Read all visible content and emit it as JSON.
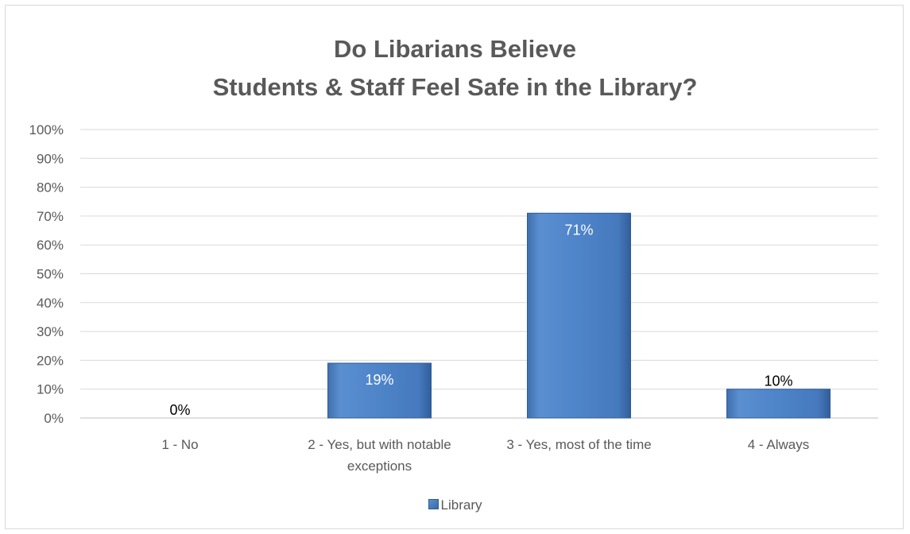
{
  "chart_data": {
    "type": "bar",
    "title_lines": [
      "Do Libarians Believe",
      "Students & Staff Feel Safe in the Library?"
    ],
    "categories": [
      [
        "1 - No"
      ],
      [
        "2 - Yes, but with notable",
        "exceptions"
      ],
      [
        "3 - Yes, most of the time"
      ],
      [
        "4 - Always"
      ]
    ],
    "series": [
      {
        "name": "Library",
        "values": [
          0,
          19,
          71,
          10
        ],
        "data_labels": [
          "0%",
          "19%",
          "71%",
          "10%"
        ],
        "color": "#4a7fc1"
      }
    ],
    "y_ticks": [
      "0%",
      "10%",
      "20%",
      "30%",
      "40%",
      "50%",
      "60%",
      "70%",
      "80%",
      "90%",
      "100%"
    ],
    "ylim": [
      0,
      100
    ],
    "grid": true,
    "legend_position": "bottom"
  }
}
